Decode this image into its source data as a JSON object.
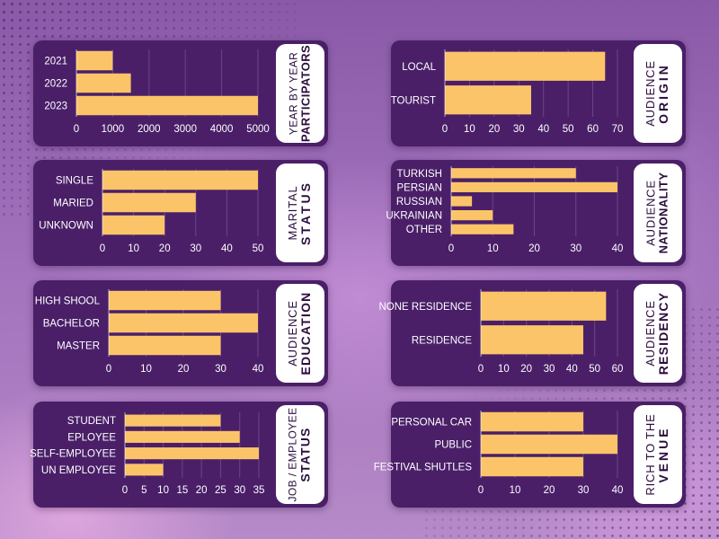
{
  "colors": {
    "panel": "#4a1f68",
    "bar": "#fcc468",
    "label_card": "#ffffff",
    "label_text": "#2b0d3d"
  },
  "chart_data": [
    {
      "id": "participants",
      "type": "bar",
      "orientation": "horizontal",
      "title_line1": "YEAR BY YEAR",
      "title_line2": "PARTICIPATORS",
      "categories": [
        "2021",
        "2022",
        "2023"
      ],
      "values": [
        1000,
        1500,
        5000
      ],
      "xlim": [
        0,
        5000
      ],
      "ticks": [
        "0",
        "1000",
        "2000",
        "3000",
        "4000",
        "5000"
      ]
    },
    {
      "id": "origin",
      "type": "bar",
      "orientation": "horizontal",
      "title_line1": "AUDIENCE",
      "title_line2": "ORIGIN",
      "categories": [
        "LOCAL",
        "TOURIST"
      ],
      "values": [
        65,
        35
      ],
      "xlim": [
        0,
        70
      ],
      "ticks": [
        "0",
        "10",
        "20",
        "30",
        "40",
        "50",
        "60",
        "70"
      ]
    },
    {
      "id": "marital",
      "type": "bar",
      "orientation": "horizontal",
      "title_line1": "MARITAL",
      "title_line2": "STATUS",
      "categories": [
        "SINGLE",
        "MARIED",
        "UNKNOWN"
      ],
      "values": [
        50,
        30,
        20
      ],
      "xlim": [
        0,
        50
      ],
      "ticks": [
        "0",
        "10",
        "20",
        "30",
        "40",
        "50"
      ]
    },
    {
      "id": "nationality",
      "type": "bar",
      "orientation": "horizontal",
      "title_line1": "AUDIENCE",
      "title_line2": "NATIONALITY",
      "categories": [
        "TURKISH",
        "PERSIAN",
        "RUSSIAN",
        "UKRAINIAN",
        "OTHER"
      ],
      "values": [
        30,
        40,
        5,
        10,
        15
      ],
      "xlim": [
        0,
        40
      ],
      "ticks": [
        "0",
        "10",
        "20",
        "30",
        "40"
      ]
    },
    {
      "id": "education",
      "type": "bar",
      "orientation": "horizontal",
      "title_line1": "AUDIENCE",
      "title_line2": "EDUCATION",
      "categories": [
        "HIGH SHOOL",
        "BACHELOR",
        "MASTER"
      ],
      "values": [
        30,
        40,
        30
      ],
      "xlim": [
        0,
        40
      ],
      "ticks": [
        "0",
        "10",
        "20",
        "30",
        "40"
      ]
    },
    {
      "id": "residency",
      "type": "bar",
      "orientation": "horizontal",
      "title_line1": "AUDIENCE",
      "title_line2": "RESIDENCY",
      "categories": [
        "NONE RESIDENCE",
        "RESIDENCE"
      ],
      "values": [
        55,
        45
      ],
      "xlim": [
        0,
        60
      ],
      "ticks": [
        "0",
        "10",
        "20",
        "30",
        "40",
        "50",
        "60"
      ]
    },
    {
      "id": "job",
      "type": "bar",
      "orientation": "horizontal",
      "title_line1": "JOB / EMPLOYEE",
      "title_line2": "STATUS",
      "categories": [
        "STUDENT",
        "EPLOYEE",
        "SELF-EMPLOYEE",
        "UN EMPLOYEE"
      ],
      "values": [
        25,
        30,
        35,
        10
      ],
      "xlim": [
        0,
        35
      ],
      "ticks": [
        "0",
        "5",
        "10",
        "15",
        "20",
        "25",
        "30",
        "35"
      ]
    },
    {
      "id": "venue",
      "type": "bar",
      "orientation": "horizontal",
      "title_line1": "RICH TO THE",
      "title_line2": "VENUE",
      "categories": [
        "PERSONAL CAR",
        "PUBLIC",
        "FESTIVAL SHUTLES"
      ],
      "values": [
        30,
        40,
        30
      ],
      "xlim": [
        0,
        40
      ],
      "ticks": [
        "0",
        "10",
        "20",
        "30",
        "40"
      ]
    }
  ]
}
